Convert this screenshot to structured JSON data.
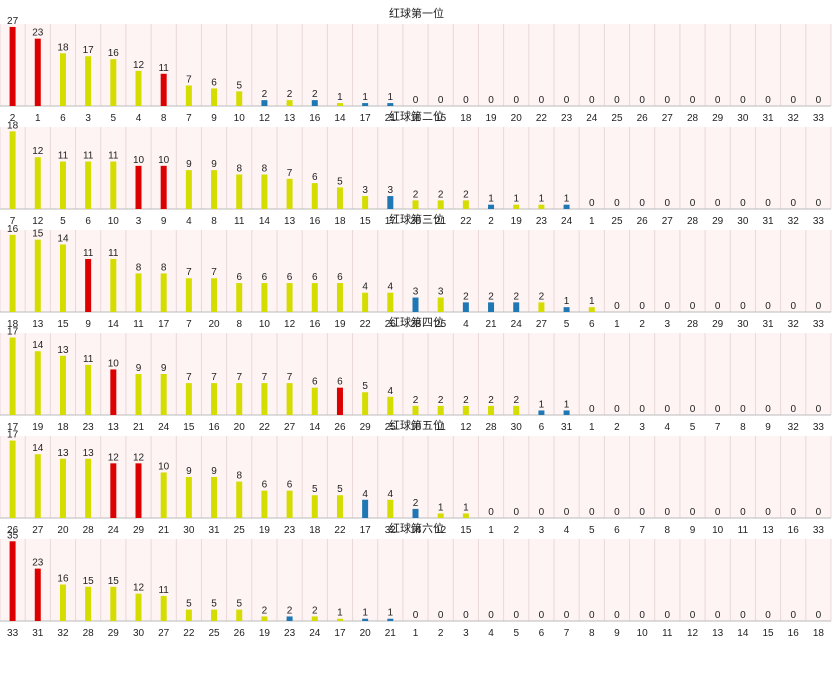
{
  "colors": {
    "red": "#dd0000",
    "yellow": "#d4dc00",
    "blue": "#1f77b4",
    "plot_bg": "#fff4f4",
    "grid": "#e8d8d8",
    "text": "#222222"
  },
  "chart_data": [
    {
      "type": "bar",
      "title": "红球第一位",
      "categories": [
        "2",
        "1",
        "6",
        "3",
        "5",
        "4",
        "8",
        "7",
        "9",
        "10",
        "12",
        "13",
        "16",
        "14",
        "17",
        "21",
        "11",
        "15",
        "18",
        "19",
        "20",
        "22",
        "23",
        "24",
        "25",
        "26",
        "27",
        "28",
        "29",
        "30",
        "31",
        "32",
        "33"
      ],
      "values": [
        27,
        23,
        18,
        17,
        16,
        12,
        11,
        7,
        6,
        5,
        2,
        2,
        2,
        1,
        1,
        1,
        0,
        0,
        0,
        0,
        0,
        0,
        0,
        0,
        0,
        0,
        0,
        0,
        0,
        0,
        0,
        0,
        0
      ],
      "bar_colors": [
        "red",
        "red",
        "yellow",
        "yellow",
        "yellow",
        "yellow",
        "red",
        "yellow",
        "yellow",
        "yellow",
        "blue",
        "yellow",
        "blue",
        "yellow",
        "blue",
        "blue",
        "yellow",
        "yellow",
        "yellow",
        "yellow",
        "yellow",
        "yellow",
        "yellow",
        "yellow",
        "yellow",
        "yellow",
        "yellow",
        "yellow",
        "yellow",
        "yellow",
        "yellow",
        "yellow",
        "yellow"
      ],
      "ylim": [
        0,
        28
      ]
    },
    {
      "type": "bar",
      "title": "红球第二位",
      "categories": [
        "7",
        "12",
        "5",
        "6",
        "10",
        "3",
        "9",
        "4",
        "8",
        "11",
        "14",
        "13",
        "16",
        "18",
        "15",
        "17",
        "20",
        "21",
        "22",
        "2",
        "19",
        "23",
        "24",
        "1",
        "25",
        "26",
        "27",
        "28",
        "29",
        "30",
        "31",
        "32",
        "33"
      ],
      "values": [
        18,
        12,
        11,
        11,
        11,
        10,
        10,
        9,
        9,
        8,
        8,
        7,
        6,
        5,
        3,
        3,
        2,
        2,
        2,
        1,
        1,
        1,
        1,
        0,
        0,
        0,
        0,
        0,
        0,
        0,
        0,
        0,
        0
      ],
      "bar_colors": [
        "yellow",
        "yellow",
        "yellow",
        "yellow",
        "yellow",
        "red",
        "red",
        "yellow",
        "yellow",
        "yellow",
        "yellow",
        "yellow",
        "yellow",
        "yellow",
        "yellow",
        "blue",
        "yellow",
        "yellow",
        "yellow",
        "blue",
        "yellow",
        "yellow",
        "blue",
        "yellow",
        "yellow",
        "yellow",
        "yellow",
        "yellow",
        "yellow",
        "yellow",
        "yellow",
        "yellow",
        "yellow"
      ],
      "ylim": [
        0,
        19
      ]
    },
    {
      "type": "bar",
      "title": "红球第三位",
      "categories": [
        "18",
        "13",
        "15",
        "9",
        "14",
        "11",
        "17",
        "7",
        "20",
        "8",
        "10",
        "12",
        "16",
        "19",
        "22",
        "26",
        "23",
        "25",
        "4",
        "21",
        "24",
        "27",
        "5",
        "6",
        "1",
        "2",
        "3",
        "28",
        "29",
        "30",
        "31",
        "32",
        "33"
      ],
      "values": [
        16,
        15,
        14,
        11,
        11,
        8,
        8,
        7,
        7,
        6,
        6,
        6,
        6,
        6,
        4,
        4,
        3,
        3,
        2,
        2,
        2,
        2,
        1,
        1,
        0,
        0,
        0,
        0,
        0,
        0,
        0,
        0,
        0
      ],
      "bar_colors": [
        "yellow",
        "yellow",
        "yellow",
        "red",
        "yellow",
        "yellow",
        "yellow",
        "yellow",
        "yellow",
        "yellow",
        "yellow",
        "yellow",
        "yellow",
        "yellow",
        "yellow",
        "yellow",
        "blue",
        "yellow",
        "blue",
        "blue",
        "blue",
        "yellow",
        "blue",
        "yellow",
        "yellow",
        "yellow",
        "yellow",
        "yellow",
        "yellow",
        "yellow",
        "yellow",
        "yellow",
        "yellow"
      ],
      "ylim": [
        0,
        17
      ]
    },
    {
      "type": "bar",
      "title": "红球第四位",
      "categories": [
        "17",
        "19",
        "18",
        "23",
        "13",
        "21",
        "24",
        "15",
        "16",
        "20",
        "22",
        "27",
        "14",
        "26",
        "29",
        "25",
        "10",
        "11",
        "12",
        "28",
        "30",
        "6",
        "31",
        "1",
        "2",
        "3",
        "4",
        "5",
        "7",
        "8",
        "9",
        "32",
        "33"
      ],
      "values": [
        17,
        14,
        13,
        11,
        10,
        9,
        9,
        7,
        7,
        7,
        7,
        7,
        6,
        6,
        5,
        4,
        2,
        2,
        2,
        2,
        2,
        1,
        1,
        0,
        0,
        0,
        0,
        0,
        0,
        0,
        0,
        0,
        0
      ],
      "bar_colors": [
        "yellow",
        "yellow",
        "yellow",
        "yellow",
        "red",
        "yellow",
        "yellow",
        "yellow",
        "yellow",
        "yellow",
        "yellow",
        "yellow",
        "yellow",
        "red",
        "yellow",
        "yellow",
        "yellow",
        "yellow",
        "yellow",
        "yellow",
        "yellow",
        "blue",
        "blue",
        "yellow",
        "yellow",
        "yellow",
        "yellow",
        "yellow",
        "yellow",
        "yellow",
        "yellow",
        "yellow",
        "yellow"
      ],
      "ylim": [
        0,
        18
      ]
    },
    {
      "type": "bar",
      "title": "红球第五位",
      "categories": [
        "26",
        "27",
        "20",
        "28",
        "24",
        "29",
        "21",
        "30",
        "31",
        "25",
        "19",
        "23",
        "18",
        "22",
        "17",
        "32",
        "14",
        "12",
        "15",
        "1",
        "2",
        "3",
        "4",
        "5",
        "6",
        "7",
        "8",
        "9",
        "10",
        "11",
        "13",
        "16",
        "33"
      ],
      "values": [
        17,
        14,
        13,
        13,
        12,
        12,
        10,
        9,
        9,
        8,
        6,
        6,
        5,
        5,
        4,
        4,
        2,
        1,
        1,
        0,
        0,
        0,
        0,
        0,
        0,
        0,
        0,
        0,
        0,
        0,
        0,
        0,
        0
      ],
      "bar_colors": [
        "yellow",
        "yellow",
        "yellow",
        "yellow",
        "red",
        "red",
        "yellow",
        "yellow",
        "yellow",
        "yellow",
        "yellow",
        "yellow",
        "yellow",
        "yellow",
        "blue",
        "yellow",
        "blue",
        "yellow",
        "yellow",
        "yellow",
        "yellow",
        "yellow",
        "yellow",
        "yellow",
        "yellow",
        "yellow",
        "yellow",
        "yellow",
        "yellow",
        "yellow",
        "yellow",
        "yellow",
        "yellow"
      ],
      "ylim": [
        0,
        18
      ]
    },
    {
      "type": "bar",
      "title": "红球第六位",
      "categories": [
        "33",
        "31",
        "32",
        "28",
        "29",
        "30",
        "27",
        "22",
        "25",
        "26",
        "19",
        "23",
        "24",
        "17",
        "20",
        "21",
        "1",
        "2",
        "3",
        "4",
        "5",
        "6",
        "7",
        "8",
        "9",
        "10",
        "11",
        "12",
        "13",
        "14",
        "15",
        "16",
        "18"
      ],
      "values": [
        35,
        23,
        16,
        15,
        15,
        12,
        11,
        5,
        5,
        5,
        2,
        2,
        2,
        1,
        1,
        1,
        0,
        0,
        0,
        0,
        0,
        0,
        0,
        0,
        0,
        0,
        0,
        0,
        0,
        0,
        0,
        0,
        0
      ],
      "bar_colors": [
        "red",
        "red",
        "yellow",
        "yellow",
        "yellow",
        "yellow",
        "yellow",
        "yellow",
        "yellow",
        "yellow",
        "yellow",
        "blue",
        "yellow",
        "yellow",
        "blue",
        "blue",
        "yellow",
        "yellow",
        "yellow",
        "yellow",
        "yellow",
        "yellow",
        "yellow",
        "yellow",
        "yellow",
        "yellow",
        "yellow",
        "yellow",
        "yellow",
        "yellow",
        "yellow",
        "yellow",
        "yellow"
      ],
      "ylim": [
        0,
        36
      ]
    }
  ]
}
